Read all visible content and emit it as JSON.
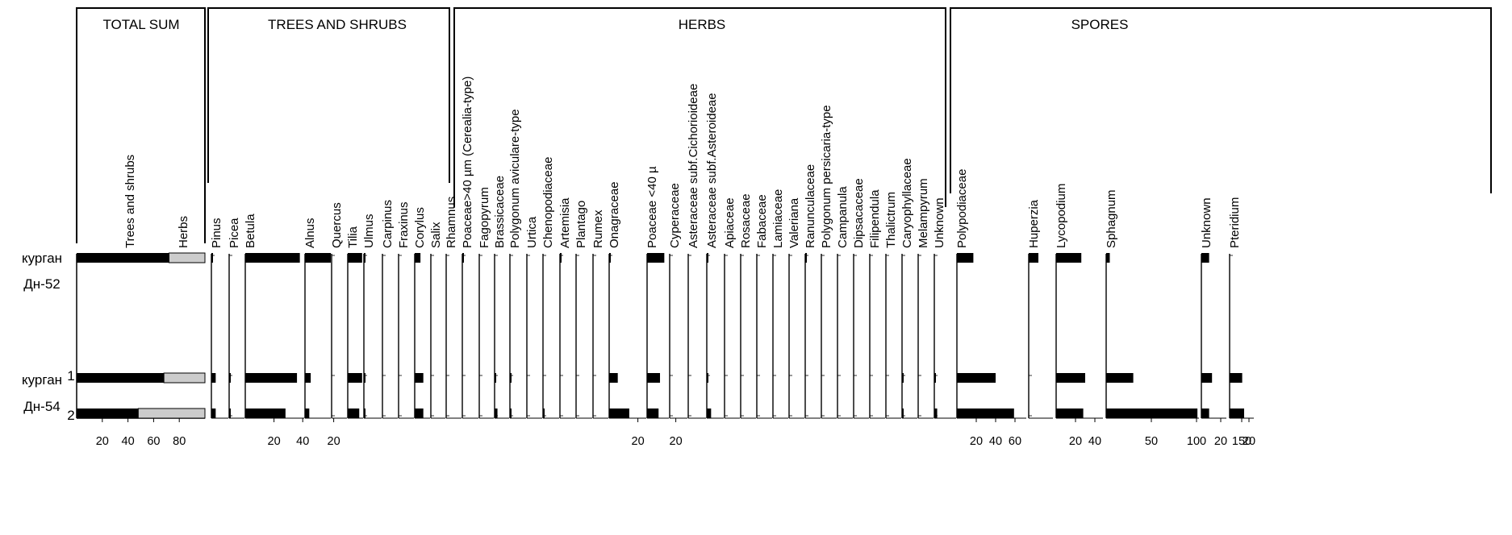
{
  "chart_data": {
    "type": "bar",
    "groups": [
      {
        "key": "sum",
        "label": "TOTAL SUM"
      },
      {
        "key": "trees",
        "label": "TREES AND SHRUBS"
      },
      {
        "key": "herbs",
        "label": "HERBS"
      },
      {
        "key": "spores",
        "label": "SPORES"
      }
    ],
    "samples": [
      {
        "site": "курган",
        "site_sub": "Дн-52",
        "id": ""
      },
      {
        "site": "курган",
        "site_sub": "",
        "id": "1"
      },
      {
        "site": "",
        "site_sub": "Дн-54",
        "id": "2"
      }
    ],
    "summary": {
      "labels": [
        "Trees and shrubs",
        "Herbs"
      ],
      "trees_values": [
        72,
        68,
        48
      ],
      "colors": {
        "trees": "#000000",
        "herbs": "#cccccc"
      },
      "ticks": [
        20,
        40,
        60,
        80
      ],
      "xlim": [
        0,
        100
      ]
    },
    "taxa": [
      {
        "group": "trees",
        "name": "Pinus",
        "values": [
          1,
          3,
          3
        ],
        "ticks": []
      },
      {
        "group": "trees",
        "name": "Picea",
        "values": [
          0,
          1,
          1
        ],
        "ticks": []
      },
      {
        "group": "trees",
        "name": "Betula",
        "values": [
          38,
          36,
          28
        ],
        "ticks": [
          20,
          40
        ]
      },
      {
        "group": "trees",
        "name": "Alnus",
        "values": [
          18,
          4,
          3
        ],
        "ticks": [
          20
        ]
      },
      {
        "group": "trees",
        "name": "Quercus",
        "values": [
          0,
          0,
          0
        ],
        "ticks": []
      },
      {
        "group": "trees",
        "name": "Tilia",
        "values": [
          10,
          10,
          8
        ],
        "ticks": []
      },
      {
        "group": "trees",
        "name": "Ulmus",
        "values": [
          1,
          1,
          1
        ],
        "ticks": []
      },
      {
        "group": "trees",
        "name": "Carpinus",
        "values": [
          0,
          0,
          0
        ],
        "ticks": []
      },
      {
        "group": "trees",
        "name": "Fraxinus",
        "values": [
          0,
          0,
          0
        ],
        "ticks": []
      },
      {
        "group": "trees",
        "name": "Corylus",
        "values": [
          4,
          6,
          6
        ],
        "ticks": []
      },
      {
        "group": "trees",
        "name": "Salix",
        "values": [
          0,
          0,
          0
        ],
        "ticks": []
      },
      {
        "group": "trees",
        "name": "Rhamnus",
        "values": [
          0,
          0,
          0
        ],
        "ticks": []
      },
      {
        "group": "herbs",
        "name": "Poaceae>40 µm (Cerealia-type)",
        "values": [
          1,
          0,
          0
        ],
        "ticks": []
      },
      {
        "group": "herbs",
        "name": "Fagopyrum",
        "values": [
          0,
          0,
          0
        ],
        "ticks": []
      },
      {
        "group": "herbs",
        "name": "Brassicaceae",
        "values": [
          0,
          1,
          2
        ],
        "ticks": []
      },
      {
        "group": "herbs",
        "name": "Polygonum aviculare-type",
        "values": [
          0,
          1,
          1
        ],
        "ticks": []
      },
      {
        "group": "herbs",
        "name": "Urtica",
        "values": [
          0,
          0,
          0
        ],
        "ticks": []
      },
      {
        "group": "herbs",
        "name": "Chenopodiaceae",
        "values": [
          0,
          0,
          1
        ],
        "ticks": []
      },
      {
        "group": "herbs",
        "name": "Artemisia",
        "values": [
          1,
          0,
          0
        ],
        "ticks": []
      },
      {
        "group": "herbs",
        "name": "Plantago",
        "values": [
          0,
          0,
          0
        ],
        "ticks": []
      },
      {
        "group": "herbs",
        "name": "Rumex",
        "values": [
          0,
          0,
          0
        ],
        "ticks": []
      },
      {
        "group": "herbs",
        "name": "Onagraceae",
        "values": [
          1,
          6,
          14
        ],
        "ticks": [
          20
        ]
      },
      {
        "group": "herbs",
        "name": "Poaceae <40 µ",
        "values": [
          12,
          9,
          8
        ],
        "ticks": [
          20
        ]
      },
      {
        "group": "herbs",
        "name": "Cyperaceae",
        "values": [
          0,
          0,
          0
        ],
        "ticks": []
      },
      {
        "group": "herbs",
        "name": "Asteraceae subf.Cichorioideae",
        "values": [
          0,
          0,
          0
        ],
        "ticks": []
      },
      {
        "group": "herbs",
        "name": "Asteraceae subf.Asteroideae",
        "values": [
          1,
          1,
          3
        ],
        "ticks": []
      },
      {
        "group": "herbs",
        "name": "Apiaceae",
        "values": [
          0,
          0,
          0
        ],
        "ticks": []
      },
      {
        "group": "herbs",
        "name": "Rosaceae",
        "values": [
          0,
          0,
          0
        ],
        "ticks": []
      },
      {
        "group": "herbs",
        "name": "Fabaceae",
        "values": [
          0,
          0,
          0
        ],
        "ticks": []
      },
      {
        "group": "herbs",
        "name": "Lamiaceae",
        "values": [
          0,
          0,
          0
        ],
        "ticks": []
      },
      {
        "group": "herbs",
        "name": "Valeriana",
        "values": [
          0,
          0,
          0
        ],
        "ticks": []
      },
      {
        "group": "herbs",
        "name": "Ranunculaceae",
        "values": [
          1,
          0,
          0
        ],
        "ticks": []
      },
      {
        "group": "herbs",
        "name": "Polygonum persicaria-type",
        "values": [
          0,
          0,
          0
        ],
        "ticks": []
      },
      {
        "group": "herbs",
        "name": "Campanula",
        "values": [
          0,
          0,
          0
        ],
        "ticks": []
      },
      {
        "group": "herbs",
        "name": "Dipsacaceae",
        "values": [
          0,
          0,
          0
        ],
        "ticks": []
      },
      {
        "group": "herbs",
        "name": "Filipendula",
        "values": [
          0,
          0,
          0
        ],
        "ticks": []
      },
      {
        "group": "herbs",
        "name": "Thalictrum",
        "values": [
          0,
          0,
          0
        ],
        "ticks": []
      },
      {
        "group": "herbs",
        "name": "Caryophyllaceae",
        "values": [
          0,
          1,
          1
        ],
        "ticks": []
      },
      {
        "group": "herbs",
        "name": "Melampyrum",
        "values": [
          0,
          0,
          0
        ],
        "ticks": []
      },
      {
        "group": "herbs",
        "name": "Unknown",
        "values": [
          0,
          1,
          2
        ],
        "ticks": []
      },
      {
        "group": "spores",
        "name": "Polypodiaceae",
        "values": [
          17,
          40,
          59
        ],
        "ticks": [
          20,
          40,
          60
        ]
      },
      {
        "group": "spores",
        "name": "Huperzia",
        "values": [
          10,
          0,
          0
        ],
        "ticks": []
      },
      {
        "group": "spores",
        "name": "Lycopodium",
        "values": [
          26,
          30,
          28
        ],
        "ticks": [
          20,
          40
        ]
      },
      {
        "group": "spores",
        "name": "Sphagnum",
        "values": [
          4,
          30,
          101
        ],
        "ticks": [
          50,
          100,
          150
        ]
      },
      {
        "group": "spores",
        "name": "Unknown",
        "values": [
          8,
          11,
          8
        ],
        "ticks": [
          20
        ]
      },
      {
        "group": "spores",
        "name": "Pteridium",
        "values": [
          0,
          13,
          15
        ],
        "ticks": [
          20
        ]
      }
    ]
  }
}
